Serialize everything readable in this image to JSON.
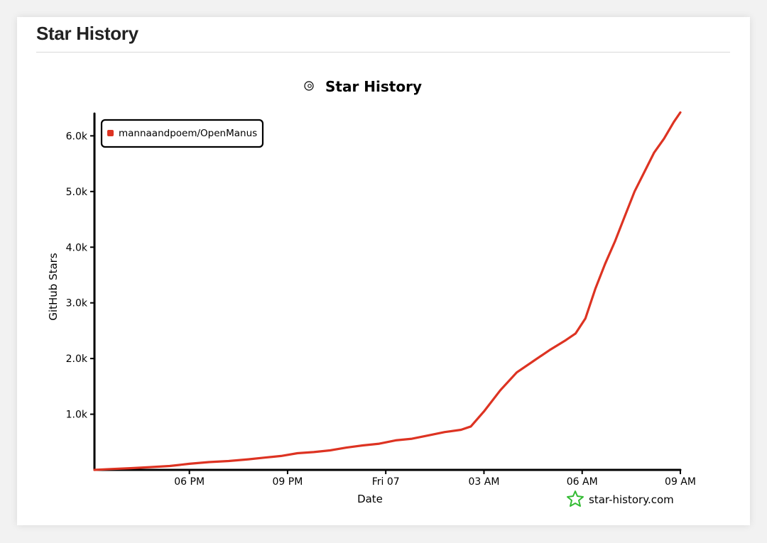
{
  "card": {
    "title": "Star History"
  },
  "chart_data": {
    "type": "line",
    "title": "Star History",
    "xlabel": "Date",
    "ylabel": "GitHub Stars",
    "x_tick_labels": [
      "06 PM",
      "09 PM",
      "Fri 07",
      "03 AM",
      "06 AM",
      "09 AM"
    ],
    "x_ticks_hours": [
      18,
      21,
      24,
      27,
      30,
      33
    ],
    "xlim_hours": [
      15.1,
      33
    ],
    "y_tick_labels": [
      "1.0k",
      "2.0k",
      "3.0k",
      "4.0k",
      "5.0k",
      "6.0k"
    ],
    "y_ticks": [
      1000,
      2000,
      3000,
      4000,
      5000,
      6000
    ],
    "ylim": [
      0,
      6400
    ],
    "legend_position": "top-left",
    "grid": false,
    "series": [
      {
        "name": "mannaandpoem/OpenManus",
        "color": "#dd3322",
        "x_hours": [
          15.1,
          15.6,
          16.2,
          16.8,
          17.4,
          18.0,
          18.6,
          19.2,
          19.8,
          20.3,
          20.8,
          21.3,
          21.8,
          22.3,
          22.8,
          23.3,
          23.8,
          24.3,
          24.8,
          25.3,
          25.8,
          26.3,
          26.6,
          27.0,
          27.5,
          28.0,
          28.5,
          29.0,
          29.5,
          29.8,
          30.1,
          30.4,
          30.7,
          31.0,
          31.3,
          31.6,
          31.9,
          32.2,
          32.5,
          32.8,
          33.0
        ],
        "values": [
          0,
          15,
          30,
          50,
          70,
          110,
          140,
          160,
          190,
          220,
          250,
          300,
          320,
          350,
          400,
          440,
          470,
          530,
          560,
          620,
          680,
          720,
          780,
          1050,
          1430,
          1750,
          1950,
          2150,
          2330,
          2450,
          2720,
          3250,
          3700,
          4100,
          4550,
          5000,
          5350,
          5700,
          5950,
          6250,
          6420
        ]
      }
    ]
  },
  "watermark": {
    "text": "star-history.com"
  }
}
